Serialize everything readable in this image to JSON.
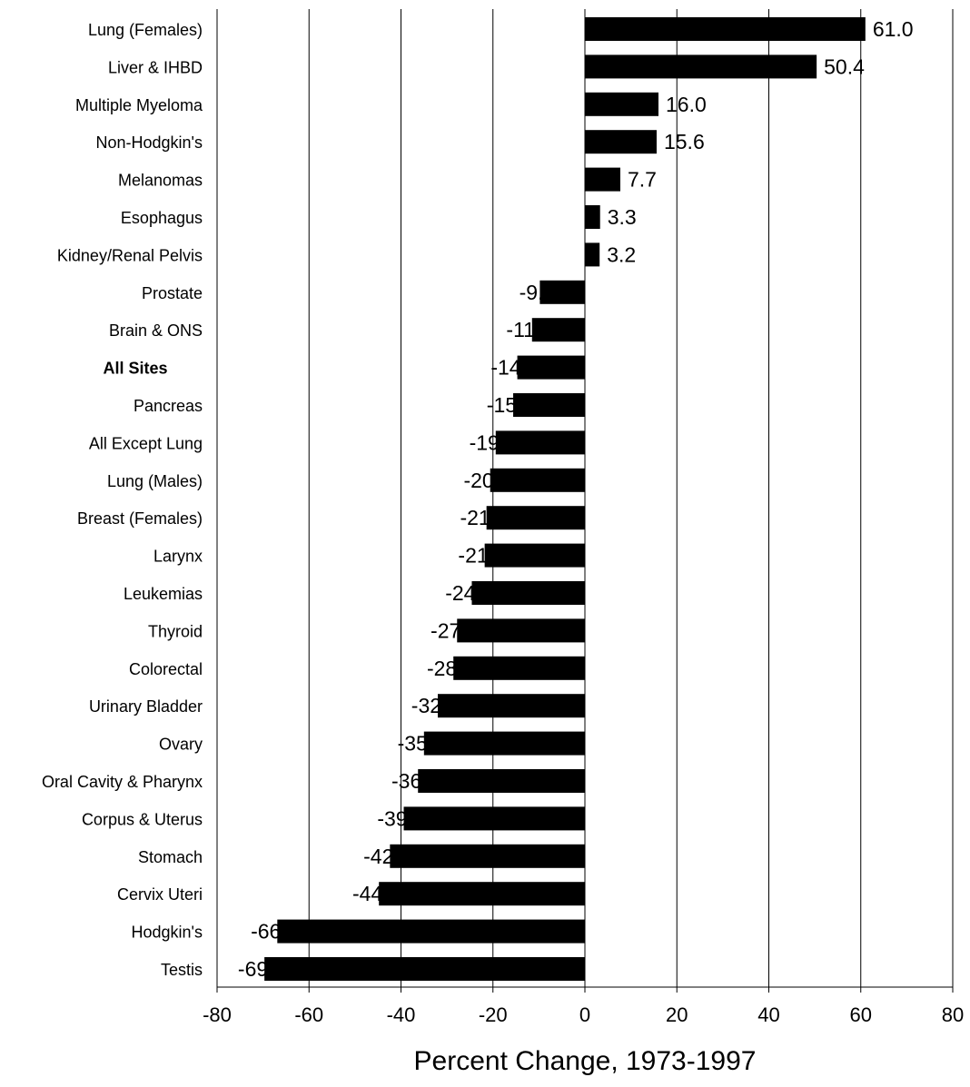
{
  "chart_data": {
    "type": "bar",
    "orientation": "horizontal",
    "categories": [
      "Lung (Females)",
      "Liver & IHBD",
      "Multiple Myeloma",
      "Non-Hodgkin's",
      "Melanomas",
      "Esophagus",
      "Kidney/Renal Pelvis",
      "Prostate",
      "Brain & ONS",
      "All Sites",
      "Pancreas",
      "All Except Lung",
      "Lung (Males)",
      "Breast (Females)",
      "Larynx",
      "Leukemias",
      "Thyroid",
      "Colorectal",
      "Urinary Bladder",
      "Ovary",
      "Oral Cavity & Pharynx",
      "Corpus & Uterus",
      "Stomach",
      "Cervix Uteri",
      "Hodgkin's",
      "Testis"
    ],
    "values": [
      61.0,
      50.4,
      16.0,
      15.6,
      7.7,
      3.3,
      3.2,
      -9.8,
      -11.5,
      -14.7,
      -15.6,
      -19.4,
      -20.6,
      -21.4,
      -21.8,
      -24.6,
      -27.8,
      -28.6,
      -32.0,
      -35.0,
      -36.3,
      -39.4,
      -42.4,
      -44.8,
      -66.9,
      -69.7
    ],
    "data_labels": [
      "61.0",
      "50.4",
      "16.0",
      "15.6",
      "7.7",
      "3.3",
      "3.2",
      "-9.8",
      "-11.5",
      "-14.7",
      "-15.6",
      "-19.4",
      "-20.6",
      "-21.4",
      "-21.8",
      "-24.6",
      "-27.8",
      "-28.6",
      "-32.0",
      "-35.0",
      "-36.3",
      "-39.4",
      "-42.4",
      "-44.8",
      "-66.9",
      "-69.7"
    ],
    "bold_categories": [
      "All Sites"
    ],
    "xlabel": "Percent Change, 1973-1997",
    "ylabel": "",
    "title": "",
    "xlim": [
      -80,
      80
    ],
    "xticks": [
      -80,
      -60,
      -40,
      -20,
      0,
      20,
      40,
      60,
      80
    ],
    "grid": "vertical",
    "legend": "none",
    "bar_color": "#000000"
  }
}
